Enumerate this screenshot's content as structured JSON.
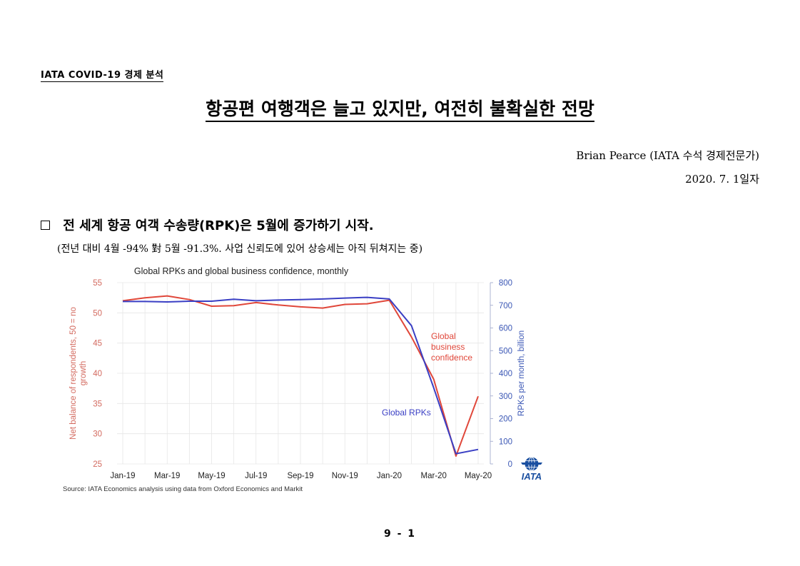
{
  "header": {
    "tag": "IATA COVID-19 경제 분석"
  },
  "document": {
    "title": "항공편 여행객은 늘고 있지만, 여전히 불확실한 전망",
    "author": "Brian Pearce (IATA 수석 경제전문가)",
    "date": "2020. 7. 1일자",
    "section_title": "전 세계 항공 여객 수송량(RPK)은 5월에 증가하기 시작.",
    "section_sub": "(전년 대비 4월 -94% 對 5월 -91.3%. 사업 신뢰도에 있어 상승세는 아직 뒤쳐지는 중)",
    "page_number": "9 - 1"
  },
  "chart_data": {
    "type": "line",
    "title": "Global RPKs and global business confidence, monthly",
    "x_tick_labels": [
      "Jan-19",
      "Mar-19",
      "May-19",
      "Jul-19",
      "Sep-19",
      "Nov-19",
      "Jan-20",
      "Mar-20",
      "May-20"
    ],
    "x": [
      "Jan-19",
      "Feb-19",
      "Mar-19",
      "Apr-19",
      "May-19",
      "Jun-19",
      "Jul-19",
      "Aug-19",
      "Sep-19",
      "Oct-19",
      "Nov-19",
      "Dec-19",
      "Jan-20",
      "Feb-20",
      "Mar-20",
      "Apr-20",
      "May-20"
    ],
    "ylabel_left": "Net balance of respondents, 50 = no growth",
    "ylabel_right": "RPKs per month, billion",
    "ylim_left": [
      25,
      55
    ],
    "ylim_right": [
      0,
      800
    ],
    "yticks_left": [
      25,
      30,
      35,
      40,
      45,
      50,
      55
    ],
    "yticks_right": [
      0,
      100,
      200,
      300,
      400,
      500,
      600,
      700,
      800
    ],
    "series": [
      {
        "name": "Global business confidence",
        "axis": "left",
        "color": "#e0473a",
        "label_lines": [
          "Global",
          "business",
          "confidence"
        ],
        "values": [
          52.0,
          52.5,
          52.8,
          52.2,
          51.1,
          51.2,
          51.7,
          51.3,
          51.0,
          50.8,
          51.4,
          51.5,
          52.1,
          46.0,
          39.0,
          26.3,
          36.2
        ]
      },
      {
        "name": "Global RPKs",
        "axis": "right",
        "color": "#3a3fc4",
        "label_lines": [
          "Global RPKs"
        ],
        "values": [
          717,
          717,
          715,
          718,
          718,
          727,
          720,
          723,
          725,
          728,
          732,
          735,
          728,
          610,
          335,
          45,
          64
        ]
      }
    ],
    "source": "Source: IATA Economics analysis using data from Oxford Economics and Markit",
    "logo_text": "IATA",
    "grid": true,
    "grid_color": "#e6e6e6",
    "axis_text_color": "#d36a5f",
    "axis_text_color_right": "#3b57b5"
  }
}
